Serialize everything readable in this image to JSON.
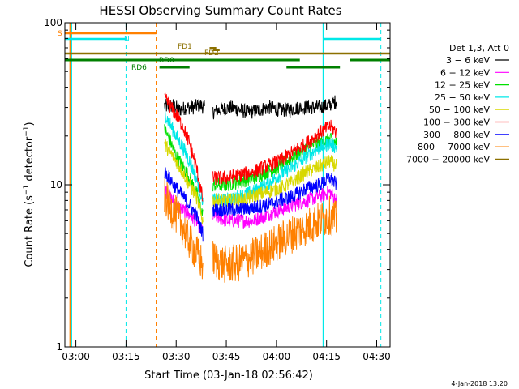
{
  "chart_data": {
    "type": "line",
    "title": "HESSI Observing Summary Count Rates",
    "xlabel": "Start Time (03-Jan-18 02:56:42)",
    "ylabel": "Count Rate (s⁻¹ detector⁻¹)",
    "ylabel_base": "Count Rate (s",
    "ylabel_mid": " detector",
    "ylabel_end": ")",
    "ylabel_sup": "−1",
    "y_scale": "log",
    "ylim": [
      1,
      100
    ],
    "xlim": [
      "02:56:42",
      "04:34:00"
    ],
    "x_ticks": [
      "03:00",
      "03:15",
      "03:30",
      "03:45",
      "04:00",
      "04:15",
      "04:30"
    ],
    "y_ticks": [
      "1",
      "10",
      "100"
    ],
    "legend": {
      "title": "Det 1,3, Att 0",
      "placement": "right",
      "entries": [
        {
          "label": "3 − 6 keV",
          "color": "#000000"
        },
        {
          "label": "6 − 12 keV",
          "color": "#ff00ff"
        },
        {
          "label": "12 − 25 keV",
          "color": "#00e000"
        },
        {
          "label": "25 − 50 keV",
          "color": "#00e8e8"
        },
        {
          "label": "50 − 100 keV",
          "color": "#d8d800"
        },
        {
          "label": "100 − 300 keV",
          "color": "#ff0000"
        },
        {
          "label": "300 − 800 keV",
          "color": "#0000ff"
        },
        {
          "label": "800 − 7000 keV",
          "color": "#ff8000"
        },
        {
          "label": "7000 − 20000 keV",
          "color": "#8c7000"
        }
      ]
    },
    "series": [
      {
        "name": "3 − 6 keV",
        "color": "#000000",
        "segments": [
          {
            "x": [
              "03:26:30",
              "03:27:30",
              "03:29:00",
              "03:31:00",
              "03:33:00",
              "03:35:00",
              "03:37:00",
              "03:38:30"
            ],
            "y": [
              31,
              30,
              31,
              29,
              30,
              30,
              31,
              30
            ]
          },
          {
            "x": [
              "03:41:00",
              "03:43:00",
              "03:46:00",
              "03:49:00",
              "03:52:00",
              "03:55:00",
              "03:58:00",
              "04:01:00",
              "04:04:00",
              "04:07:00",
              "04:10:00",
              "04:13:00",
              "04:16:00",
              "04:18:00"
            ],
            "y": [
              28,
              29,
              30,
              29,
              28,
              29,
              30,
              29,
              29,
              30,
              30,
              30,
              31,
              33
            ]
          }
        ]
      },
      {
        "name": "6 − 12 keV",
        "color": "#ff00ff",
        "segments": [
          {
            "x": [
              "03:26:30",
              "03:28:00",
              "03:30:00",
              "03:32:00",
              "03:34:00",
              "03:36:00",
              "03:38:00"
            ],
            "y": [
              9.5,
              8.5,
              7.5,
              7,
              6.5,
              6,
              5
            ]
          },
          {
            "x": [
              "03:41:00",
              "03:45:00",
              "03:49:00",
              "03:53:00",
              "03:57:00",
              "04:01:00",
              "04:05:00",
              "04:09:00",
              "04:13:00",
              "04:16:00",
              "04:18:00"
            ],
            "y": [
              6.5,
              6,
              6,
              6,
              6.5,
              7,
              7.5,
              8,
              8.5,
              9,
              8
            ]
          }
        ]
      },
      {
        "name": "12 − 25 keV",
        "color": "#00e000",
        "segments": [
          {
            "x": [
              "03:26:30",
              "03:28:00",
              "03:30:00",
              "03:32:00",
              "03:34:00",
              "03:36:00",
              "03:38:00"
            ],
            "y": [
              22,
              19,
              15,
              13,
              11,
              9,
              6.5
            ]
          },
          {
            "x": [
              "03:41:00",
              "03:45:00",
              "03:49:00",
              "03:53:00",
              "03:57:00",
              "04:01:00",
              "04:05:00",
              "04:09:00",
              "04:13:00",
              "04:16:00",
              "04:18:00"
            ],
            "y": [
              10,
              10,
              10.5,
              11,
              12,
              13,
              15,
              17,
              18,
              19,
              18
            ]
          }
        ]
      },
      {
        "name": "25 − 50 keV",
        "color": "#00e8e8",
        "segments": [
          {
            "x": [
              "03:26:30",
              "03:28:00",
              "03:30:00",
              "03:32:00",
              "03:34:00",
              "03:36:00",
              "03:38:00"
            ],
            "y": [
              28,
              24,
              20,
              17,
              14,
              11,
              8
            ]
          },
          {
            "x": [
              "03:41:00",
              "03:45:00",
              "03:49:00",
              "03:53:00",
              "03:57:00",
              "04:01:00",
              "04:05:00",
              "04:09:00",
              "04:13:00",
              "04:16:00",
              "04:18:00"
            ],
            "y": [
              8,
              8,
              8.5,
              9,
              10,
              11.5,
              13,
              15,
              17,
              18,
              17
            ]
          }
        ]
      },
      {
        "name": "50 − 100 keV",
        "color": "#d8d800",
        "segments": [
          {
            "x": [
              "03:26:30",
              "03:28:00",
              "03:30:00",
              "03:32:00",
              "03:34:00",
              "03:36:00",
              "03:38:00"
            ],
            "y": [
              18,
              16,
              14,
              12,
              10,
              8.5,
              6
            ]
          },
          {
            "x": [
              "03:41:00",
              "03:45:00",
              "03:49:00",
              "03:53:00",
              "03:57:00",
              "04:01:00",
              "04:05:00",
              "04:09:00",
              "04:13:00",
              "04:16:00",
              "04:18:00"
            ],
            "y": [
              8,
              8,
              8,
              8.5,
              9,
              9.5,
              10.5,
              12,
              13,
              14,
              13
            ]
          }
        ]
      },
      {
        "name": "100 − 300 keV",
        "color": "#ff0000",
        "segments": [
          {
            "x": [
              "03:26:30",
              "03:28:00",
              "03:30:00",
              "03:32:00",
              "03:34:00",
              "03:36:00",
              "03:38:00"
            ],
            "y": [
              34,
              31,
              27,
              23,
              18,
              13,
              8
            ]
          },
          {
            "x": [
              "03:41:00",
              "03:45:00",
              "03:49:00",
              "03:53:00",
              "03:57:00",
              "04:01:00",
              "04:05:00",
              "04:09:00",
              "04:13:00",
              "04:16:00",
              "04:18:00"
            ],
            "y": [
              11,
              11,
              11.5,
              12,
              13,
              14,
              16,
              18,
              21,
              23,
              21
            ]
          }
        ]
      },
      {
        "name": "300 − 800 keV",
        "color": "#0000ff",
        "segments": [
          {
            "x": [
              "03:26:30",
              "03:28:00",
              "03:30:00",
              "03:32:00",
              "03:34:00",
              "03:36:00",
              "03:38:00"
            ],
            "y": [
              12,
              11,
              9.5,
              8.5,
              7.5,
              6.5,
              5
            ]
          },
          {
            "x": [
              "03:41:00",
              "03:45:00",
              "03:49:00",
              "03:53:00",
              "03:57:00",
              "04:01:00",
              "04:05:00",
              "04:09:00",
              "04:13:00",
              "04:16:00",
              "04:18:00"
            ],
            "y": [
              7,
              7,
              7,
              7.2,
              7.5,
              8,
              8.5,
              9.5,
              10,
              11,
              10
            ]
          }
        ]
      },
      {
        "name": "800 − 7000 keV",
        "color": "#ff8000",
        "segments": [
          {
            "x": [
              "03:26:30",
              "03:28:00",
              "03:30:00",
              "03:32:00",
              "03:34:00",
              "03:36:00",
              "03:38:00"
            ],
            "y": [
              8.5,
              7.5,
              6.5,
              5.5,
              4.5,
              3.8,
              3.2
            ]
          },
          {
            "x": [
              "03:41:00",
              "03:45:00",
              "03:49:00",
              "03:53:00",
              "03:57:00",
              "04:01:00",
              "04:05:00",
              "04:09:00",
              "04:13:00",
              "04:16:00",
              "04:18:00"
            ],
            "y": [
              3.5,
              3.2,
              3.3,
              3.6,
              4,
              4.5,
              5,
              5.5,
              6,
              6.5,
              6
            ]
          }
        ]
      }
    ],
    "spacecraft_flags": [
      {
        "label": "S",
        "color": "#ff8000"
      },
      {
        "label": "N",
        "color": "#00e8e8"
      },
      {
        "label": "FD1",
        "color": "#8c7000"
      },
      {
        "label": "FD2",
        "color": "#8c7000"
      },
      {
        "label": "RD0",
        "color": "#008000"
      },
      {
        "label": "RD6",
        "color": "#008000"
      }
    ],
    "timestamp": "4-Jan-2018 13:20"
  }
}
